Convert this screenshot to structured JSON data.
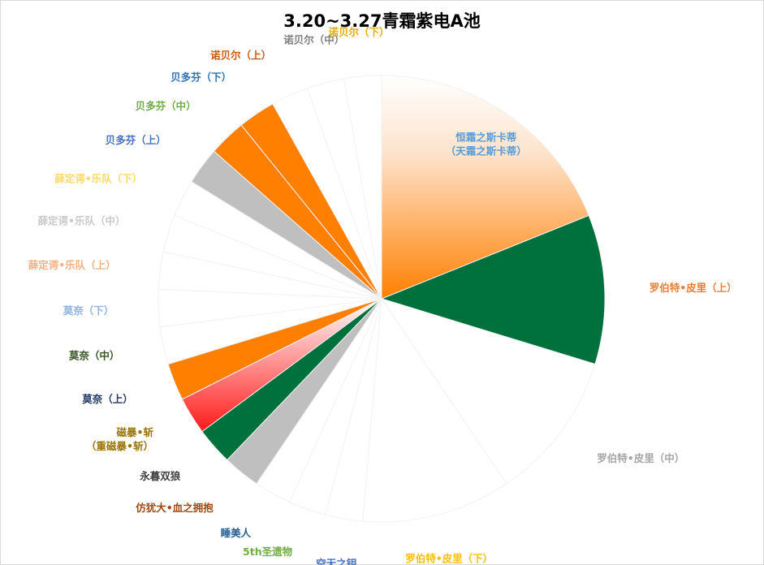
{
  "chart_data": {
    "type": "pie",
    "title": "3.20~3.27青霜紫电A池",
    "slices": [
      {
        "label": "恒霜之斯卡蒂",
        "label_line2": "（天霜之斯卡蒂）",
        "value": 17.5,
        "fill": "gradient-orange",
        "label_color": "#5b9bd5"
      },
      {
        "label": "罗伯特•皮里（上）",
        "value": 10,
        "fill": "#00703c",
        "label_color": "#ed7d31"
      },
      {
        "label": "罗伯特•皮里（中）",
        "value": 10,
        "fill": "#ffffff",
        "label_color": "#a5a5a5"
      },
      {
        "label": "罗伯特•皮里（下）",
        "value": 10,
        "fill": "#ffffff",
        "label_color": "#ffc000"
      },
      {
        "label": "空无之钥",
        "value": 2.5,
        "fill": "#ffffff",
        "label_color": "#4472c4"
      },
      {
        "label": "5th圣遗物",
        "value": 2.5,
        "fill": "#ffffff",
        "label_color": "#70ad47"
      },
      {
        "label": "睡美人",
        "value": 2.5,
        "fill": "#ffffff",
        "label_color": "#255e91"
      },
      {
        "label": "仿犹大•血之拥抱",
        "value": 2.5,
        "fill": "#bfbfbf",
        "label_color": "#9e480e"
      },
      {
        "label": "永暮双狼",
        "value": 2.5,
        "fill": "#00703c",
        "label_color": "#404040"
      },
      {
        "label": "磁暴•斩",
        "label_line2": "（重磁暴•斩）",
        "value": 2.5,
        "fill": "gradient-red",
        "label_color": "#997300"
      },
      {
        "label": "莫奈（上）",
        "value": 2.5,
        "fill": "#ff7f00",
        "label_color": "#203864"
      },
      {
        "label": "莫奈（中）",
        "value": 2.5,
        "fill": "#ffffff",
        "label_color": "#375623"
      },
      {
        "label": "莫奈（下）",
        "value": 2.5,
        "fill": "#ffffff",
        "label_color": "#8fb4e3"
      },
      {
        "label": "薛定谔•乐队（上）",
        "value": 2.5,
        "fill": "#ffffff",
        "label_color": "#f4b183"
      },
      {
        "label": "薛定谔•乐队（中）",
        "value": 2.5,
        "fill": "#ffffff",
        "label_color": "#c9c9c9"
      },
      {
        "label": "薛定谔•乐队（下）",
        "value": 2.5,
        "fill": "#ffffff",
        "label_color": "#ffd966"
      },
      {
        "label": "贝多芬（上）",
        "value": 2.5,
        "fill": "#bfbfbf",
        "label_color": "#4472c4"
      },
      {
        "label": "贝多芬（中）",
        "value": 2.5,
        "fill": "#ff7f00",
        "label_color": "#70ad47"
      },
      {
        "label": "贝多芬（下）",
        "value": 2.5,
        "fill": "#ff7f00",
        "label_color": "#2e75b6"
      },
      {
        "label": "诺贝尔（上）",
        "value": 2.5,
        "fill": "#ffffff",
        "label_color": "#c55a11"
      },
      {
        "label": "诺贝尔（中）",
        "value": 2.5,
        "fill": "#ffffff",
        "label_color": "#7f7f7f"
      },
      {
        "label": "诺贝尔（下）",
        "value": 2.5,
        "fill": "#ffffff",
        "label_color": "#e6ac00"
      }
    ]
  }
}
